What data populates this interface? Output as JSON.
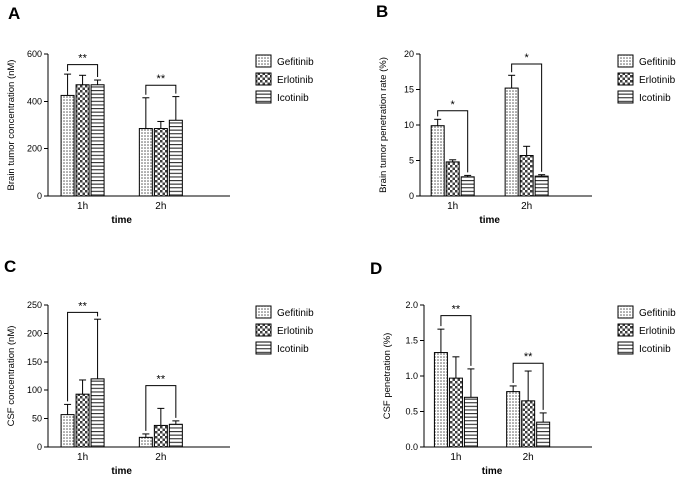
{
  "figure": {
    "background": "#ffffff",
    "text_color": "#000000",
    "bar_outline_color": "#000000"
  },
  "chart_data": [
    {
      "panel": "A",
      "type": "bar",
      "title": "",
      "ylabel": "Brain tumor concentration (nM)",
      "xlabel": "time",
      "ylim": [
        0,
        600
      ],
      "yticks": [
        0,
        200,
        400,
        600
      ],
      "ytick_labels": [
        "0",
        "200",
        "400",
        "600"
      ],
      "categories": [
        "1h",
        "2h"
      ],
      "grid": false,
      "legend_position": "right",
      "series": [
        {
          "name": "Gefitinib",
          "pattern": "dots",
          "values": [
            425,
            285
          ],
          "errors": [
            90,
            130
          ]
        },
        {
          "name": "Erlotinib",
          "pattern": "checker",
          "values": [
            470,
            285
          ],
          "errors": [
            40,
            30
          ]
        },
        {
          "name": "Icotinib",
          "pattern": "hlines",
          "values": [
            470,
            320
          ],
          "errors": [
            20,
            100
          ]
        }
      ],
      "significance": [
        {
          "group": 0,
          "from": 0,
          "to": 2,
          "y": 555,
          "label": "**"
        },
        {
          "group": 1,
          "from": 0,
          "to": 2,
          "y": 468,
          "label": "**"
        }
      ]
    },
    {
      "panel": "B",
      "type": "bar",
      "title": "",
      "ylabel": "Brain tumor penetration rate (%)",
      "xlabel": "time",
      "ylim": [
        0,
        20
      ],
      "yticks": [
        0,
        5,
        10,
        15,
        20
      ],
      "ytick_labels": [
        "0",
        "5",
        "10",
        "15",
        "20"
      ],
      "categories": [
        "1h",
        "2h"
      ],
      "grid": false,
      "legend_position": "right",
      "series": [
        {
          "name": "Gefitinib",
          "pattern": "dots",
          "values": [
            9.9,
            15.2
          ],
          "errors": [
            0.9,
            1.8
          ]
        },
        {
          "name": "Erlotinib",
          "pattern": "checker",
          "values": [
            4.8,
            5.7
          ],
          "errors": [
            0.3,
            1.3
          ]
        },
        {
          "name": "Icotinib",
          "pattern": "hlines",
          "values": [
            2.7,
            2.8
          ],
          "errors": [
            0.2,
            0.2
          ]
        }
      ],
      "significance": [
        {
          "group": 0,
          "from": 0,
          "to": 2,
          "y": 12,
          "label": "*"
        },
        {
          "group": 1,
          "from": 0,
          "to": 2,
          "y": 18.6,
          "label": "*"
        }
      ]
    },
    {
      "panel": "C",
      "type": "bar",
      "title": "",
      "ylabel": "CSF concentration (nM)",
      "xlabel": "time",
      "ylim": [
        0,
        250
      ],
      "yticks": [
        0,
        50,
        100,
        150,
        200,
        250
      ],
      "ytick_labels": [
        "0",
        "50",
        "100",
        "150",
        "200",
        "250"
      ],
      "categories": [
        "1h",
        "2h"
      ],
      "grid": false,
      "legend_position": "right",
      "series": [
        {
          "name": "Gefitinib",
          "pattern": "dots",
          "values": [
            57,
            17
          ],
          "errors": [
            18,
            6
          ]
        },
        {
          "name": "Erlotinib",
          "pattern": "checker",
          "values": [
            93,
            38
          ],
          "errors": [
            25,
            30
          ]
        },
        {
          "name": "Icotinib",
          "pattern": "hlines",
          "values": [
            120,
            40
          ],
          "errors": [
            105,
            6
          ]
        }
      ],
      "significance": [
        {
          "group": 0,
          "from": 0,
          "to": 2,
          "y": 237,
          "label": "**"
        },
        {
          "group": 1,
          "from": 0,
          "to": 2,
          "y": 108,
          "label": "**"
        }
      ]
    },
    {
      "panel": "D",
      "type": "bar",
      "title": "",
      "ylabel": "CSF penetration (%)",
      "xlabel": "time",
      "ylim": [
        0,
        2
      ],
      "yticks": [
        0,
        0.5,
        1,
        1.5,
        2
      ],
      "ytick_labels": [
        "0.0",
        "0.5",
        "1.0",
        "1.5",
        "2.0"
      ],
      "categories": [
        "1h",
        "2h"
      ],
      "grid": false,
      "legend_position": "right",
      "series": [
        {
          "name": "Gefitinib",
          "pattern": "dots",
          "values": [
            1.33,
            0.78
          ],
          "errors": [
            0.33,
            0.08
          ]
        },
        {
          "name": "Erlotinib",
          "pattern": "checker",
          "values": [
            0.97,
            0.65
          ],
          "errors": [
            0.3,
            0.42
          ]
        },
        {
          "name": "Icotinib",
          "pattern": "hlines",
          "values": [
            0.7,
            0.35
          ],
          "errors": [
            0.4,
            0.13
          ]
        }
      ],
      "significance": [
        {
          "group": 0,
          "from": 0,
          "to": 2,
          "y": 1.85,
          "label": "**"
        },
        {
          "group": 1,
          "from": 0,
          "to": 2,
          "y": 1.18,
          "label": "**"
        }
      ]
    }
  ]
}
